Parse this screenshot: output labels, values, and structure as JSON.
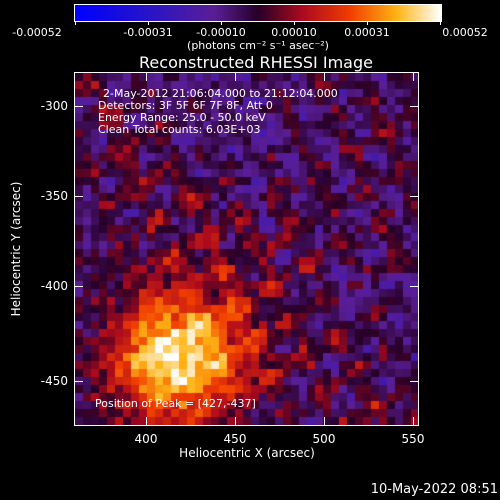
{
  "colorbar": {
    "labels": [
      "-0.00052",
      "-0.00031",
      "-0.00010",
      "0.00010",
      "0.00031",
      "0.00052"
    ],
    "units": "(photons cm⁻² s⁻¹ asec⁻²)"
  },
  "title": "Reconstructed RHESSI Image",
  "annotation": {
    "time_range": "2-May-2012 21:06:04.000 to 21:12:04.000",
    "detectors": "Detectors: 3F 5F 6F 7F 8F, Att 0",
    "energy_range": "Energy Range: 25.0 - 50.0 keV",
    "clean_counts": "Clean    Total counts: 6.03E+03",
    "peak": "Position of Peak = [427,-437]"
  },
  "x_axis": {
    "title": "Heliocentric X (arcsec)",
    "ticks": [
      "400",
      "450",
      "500",
      "550"
    ]
  },
  "y_axis": {
    "title": "Heliocentric Y (arcsec)",
    "ticks": [
      "-300",
      "-350",
      "-400",
      "-450"
    ]
  },
  "timestamp": "10-May-2022 08:51"
}
